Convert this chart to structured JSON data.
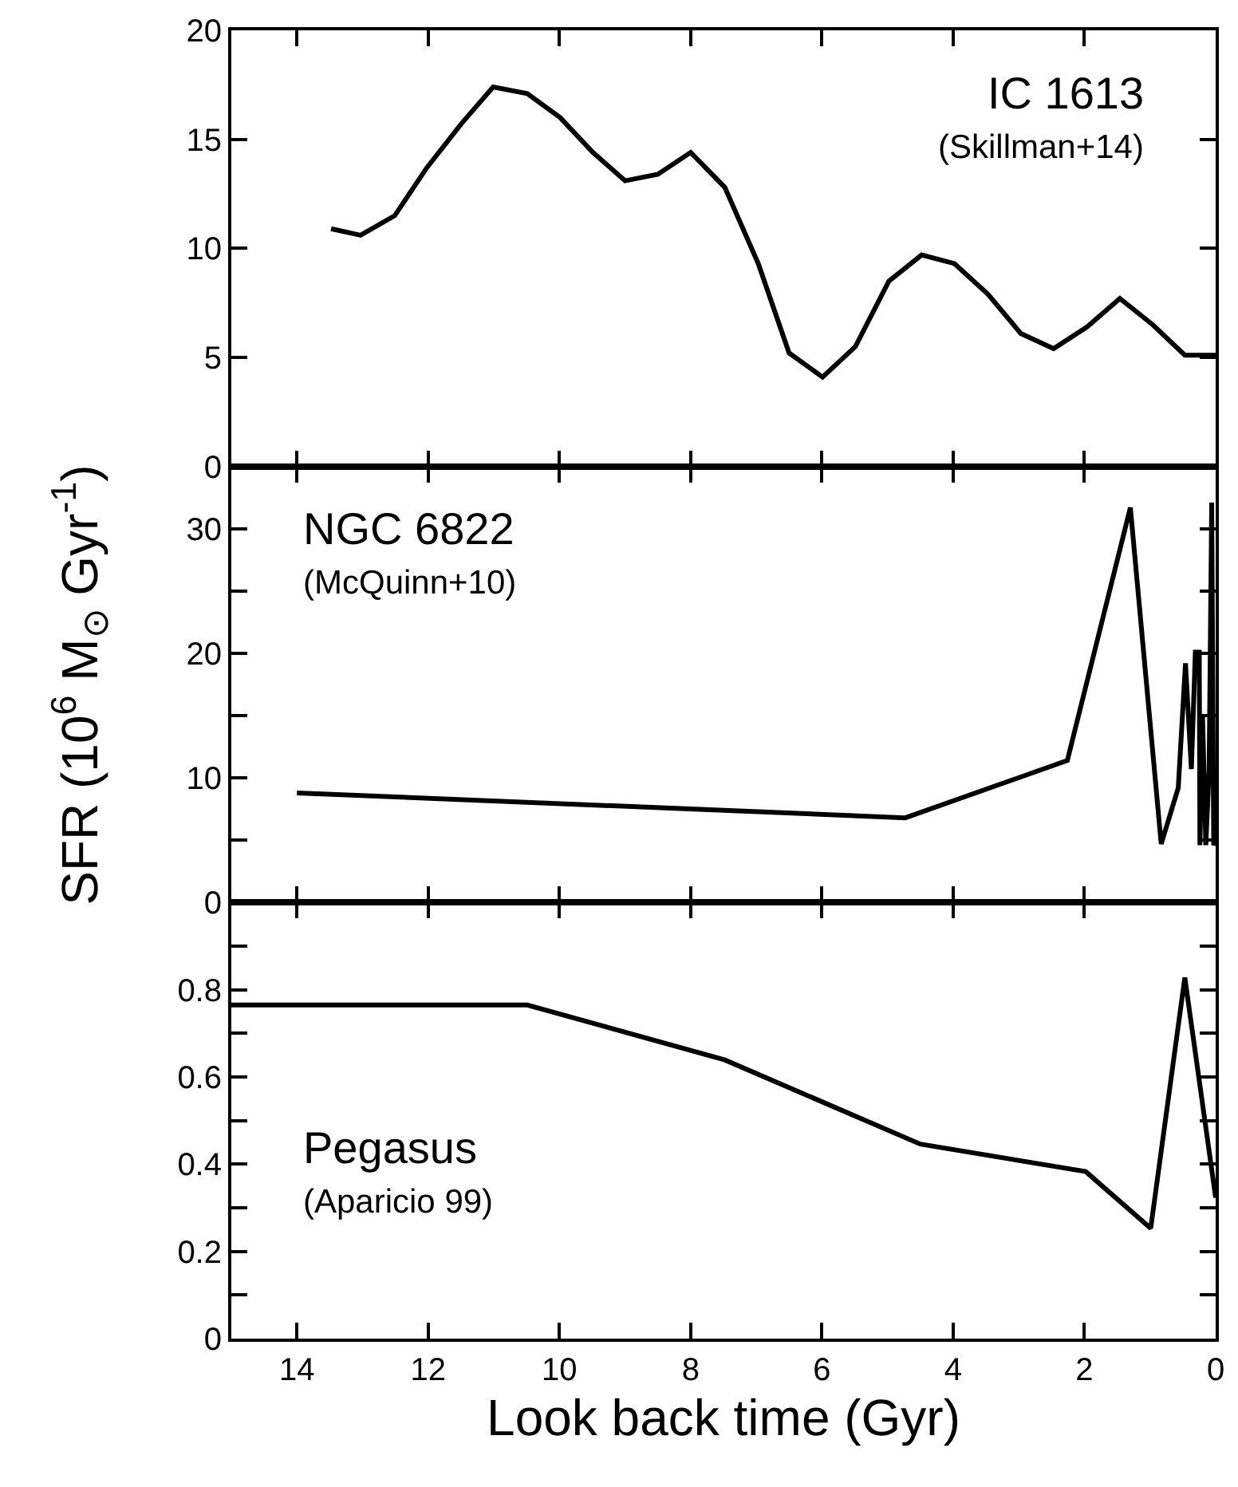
{
  "chart_data": [
    {
      "type": "line",
      "tick_labels": "y",
      "annotations": [
        "IC 1613",
        "(Skillman+14)"
      ],
      "xlim": [
        15,
        0
      ],
      "xticks": [
        14,
        12,
        10,
        8,
        6,
        4,
        2,
        0
      ],
      "ylim": [
        0,
        20
      ],
      "yticks": [
        0,
        5,
        10,
        15,
        20
      ],
      "series": [
        {
          "color": "#000000",
          "x": [
            13.48,
            13.03,
            12.51,
            12.02,
            11.5,
            11.01,
            10.49,
            9.99,
            9.49,
            9.0,
            8.5,
            8.0,
            7.48,
            6.97,
            6.5,
            5.99,
            5.49,
            4.98,
            4.48,
            3.98,
            3.47,
            2.97,
            2.47,
            1.96,
            1.46,
            0.96,
            0.47,
            0.0
          ],
          "values": [
            10.9,
            10.6,
            11.5,
            13.7,
            15.7,
            17.4,
            17.1,
            16.0,
            14.4,
            13.1,
            13.4,
            14.4,
            12.8,
            9.3,
            5.2,
            4.1,
            5.5,
            8.5,
            9.7,
            9.3,
            7.9,
            6.1,
            5.4,
            6.4,
            7.7,
            6.5,
            5.1,
            5.1
          ]
        }
      ]
    },
    {
      "type": "line",
      "tick_labels": "y",
      "ylabel": "SFR (10$^{6}$ M$_{⊙}$ Gyr$^{-1}$)",
      "annotations": [
        "NGC 6822",
        "(McQuinn+10)"
      ],
      "xlim": [
        15,
        0
      ],
      "xticks": [
        14,
        12,
        10,
        8,
        6,
        4,
        2,
        0
      ],
      "ylim": [
        0,
        35
      ],
      "yticks": [
        0,
        {
          "value": 5,
          "label": null
        },
        10,
        {
          "value": 15,
          "label": null
        },
        20,
        {
          "value": 25,
          "label": null
        },
        30
      ],
      "series": [
        {
          "color": "#000000",
          "x": [
            14.0,
            4.73,
            2.26,
            1.3,
            0.83,
            0.57,
            0.46,
            0.37,
            0.31,
            0.25,
            0.24,
            0.2,
            0.15,
            0.1,
            0.06,
            0.03,
            0.0
          ],
          "values": [
            8.8,
            6.8,
            11.4,
            31.7,
            4.7,
            9.2,
            19.2,
            10.7,
            20.1,
            20.1,
            4.6,
            15.0,
            4.6,
            10.6,
            32.1,
            4.6,
            5.0
          ]
        }
      ]
    },
    {
      "type": "line",
      "xlabel": "Look back time (Gyr)",
      "annotations": [
        "Pegasus",
        "(Aparicio 99)"
      ],
      "xlim": [
        15,
        0
      ],
      "xticks": [
        14,
        12,
        10,
        8,
        6,
        4,
        2,
        0
      ],
      "ylim": [
        0,
        1
      ],
      "yticks": [
        0,
        {
          "value": 0.1,
          "label": null
        },
        0.2,
        {
          "value": 0.3,
          "label": null
        },
        0.4,
        {
          "value": 0.5,
          "label": null
        },
        0.6,
        {
          "value": 0.7,
          "label": null
        },
        0.8,
        {
          "value": 0.9,
          "label": null
        }
      ],
      "series": [
        {
          "color": "#000000",
          "x": [
            15.0,
            10.49,
            7.48,
            4.5,
            1.98,
            0.99,
            0.47,
            0.0
          ],
          "values": [
            0.765,
            0.765,
            0.639,
            0.446,
            0.383,
            0.253,
            0.828,
            0.323
          ]
        }
      ]
    }
  ]
}
